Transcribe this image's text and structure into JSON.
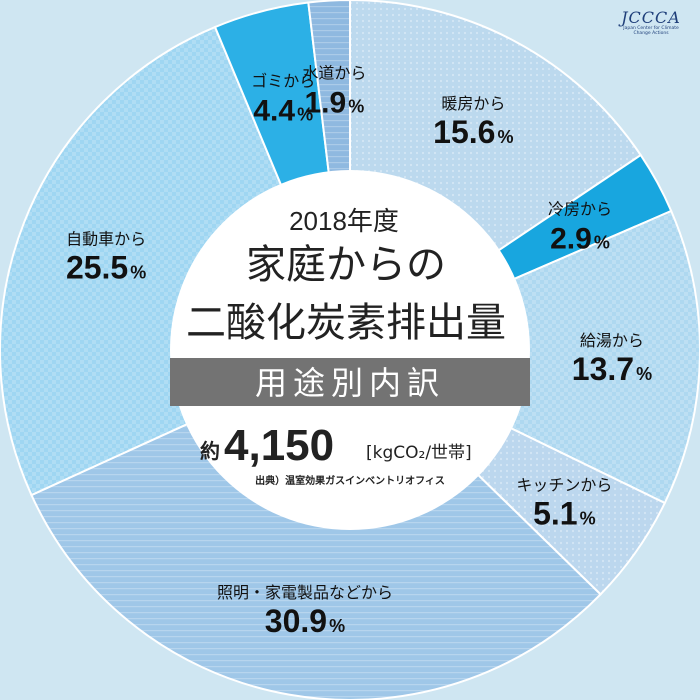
{
  "chart_data": {
    "type": "pie",
    "title_year": "2018年度",
    "title_line1": "家庭からの",
    "title_line2": "二酸化炭素排出量",
    "band_label": "用途別内訳",
    "total_prefix": "約",
    "total_value": "4,150",
    "total_unit": "[kgCO₂/世帯]",
    "source": "出典）温室効果ガスインベントリオフィス",
    "slices": [
      {
        "label": "暖房から",
        "value": 15.6,
        "value_text": "15.6",
        "pct": "%",
        "fill": "#bcd9ee"
      },
      {
        "label": "冷房から",
        "value": 2.9,
        "value_text": "2.9",
        "pct": "%",
        "fill": "#18a6df"
      },
      {
        "label": "給湯から",
        "value": 13.7,
        "value_text": "13.7",
        "pct": "%",
        "fill": "#aed8f0"
      },
      {
        "label": "キッチンから",
        "value": 5.1,
        "value_text": "5.1",
        "pct": "%",
        "fill": "#bcd7ee"
      },
      {
        "label": "照明・家電製品などから",
        "value": 30.9,
        "value_text": "30.9",
        "pct": "%",
        "fill": "#9fc7e8"
      },
      {
        "label": "自動車から",
        "value": 25.5,
        "value_text": "25.5",
        "pct": "%",
        "fill": "#9fd6f2"
      },
      {
        "label": "ゴミから",
        "value": 4.4,
        "value_text": "4.4",
        "pct": "%",
        "fill": "#2cb0e6"
      },
      {
        "label": "水道から",
        "value": 1.9,
        "value_text": "1.9",
        "pct": "%",
        "fill": "#8fb9e0"
      }
    ]
  },
  "logo": {
    "mark": "JCCCA",
    "subtitle": "Japan Center for Climate Change Actions"
  }
}
